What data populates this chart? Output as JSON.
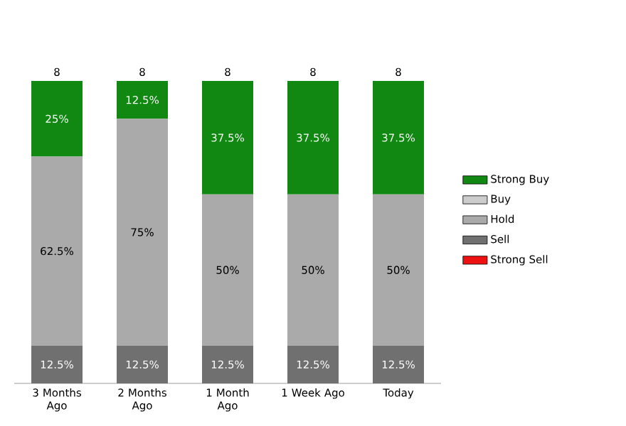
{
  "chart_data": {
    "type": "bar",
    "stacked": true,
    "legend": "right",
    "categories": [
      "3 Months Ago",
      "2 Months Ago",
      "1 Month Ago",
      "1 Week Ago",
      "Today"
    ],
    "series": [
      {
        "name": "Strong Sell",
        "color": "#ee1111",
        "values": [
          null,
          null,
          null,
          null,
          null
        ]
      },
      {
        "name": "Sell",
        "color": "#707070",
        "values": [
          12.5,
          12.5,
          12.5,
          12.5,
          12.5
        ],
        "value_labels": [
          "12.5%",
          "12.5%",
          "12.5%",
          "12.5%",
          "12.5%"
        ]
      },
      {
        "name": "Hold",
        "color": "#aaaaaa",
        "values": [
          62.5,
          75,
          50,
          50,
          50
        ],
        "value_labels": [
          "62.5%",
          "75%",
          "50%",
          "50%",
          "50%"
        ]
      },
      {
        "name": "Buy",
        "color": "#cccccc",
        "values": [
          null,
          null,
          null,
          null,
          null
        ]
      },
      {
        "name": "Strong Buy",
        "color": "#118811",
        "values": [
          25,
          12.5,
          37.5,
          37.5,
          37.5
        ],
        "value_labels": [
          "25%",
          "12.5%",
          "37.5%",
          "37.5%",
          "37.5%"
        ]
      }
    ],
    "annotations": [
      "8",
      "8",
      "8",
      "8",
      "8"
    ]
  }
}
